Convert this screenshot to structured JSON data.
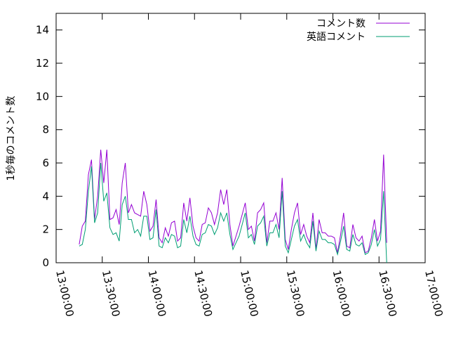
{
  "chart_data": {
    "type": "line",
    "title": "",
    "xlabel": "",
    "ylabel": "1秒毎のコメント数",
    "ylim": [
      0,
      15
    ],
    "yticks": [
      0,
      2,
      4,
      6,
      8,
      10,
      12,
      14
    ],
    "xlim": [
      "13:00:00",
      "17:00:00"
    ],
    "xticks": [
      "13:00:00",
      "13:30:00",
      "14:00:00",
      "14:30:00",
      "15:00:00",
      "15:30:00",
      "16:00:00",
      "16:30:00",
      "17:00:00"
    ],
    "grid": false,
    "legend_position": "top-right",
    "colors": {
      "series1": "#9400d3",
      "series2": "#009e73"
    },
    "series": [
      {
        "name": "コメント数",
        "points": [
          [
            "13:15:00",
            1.1
          ],
          [
            "13:17:00",
            2.2
          ],
          [
            "13:19:00",
            2.5
          ],
          [
            "13:21:00",
            5.3
          ],
          [
            "13:23:00",
            6.2
          ],
          [
            "13:25:00",
            2.6
          ],
          [
            "13:27:00",
            4.0
          ],
          [
            "13:29:00",
            6.8
          ],
          [
            "13:31:00",
            4.8
          ],
          [
            "13:33:00",
            6.8
          ],
          [
            "13:35:00",
            2.6
          ],
          [
            "13:37:00",
            2.7
          ],
          [
            "13:39:00",
            3.2
          ],
          [
            "13:41:00",
            2.3
          ],
          [
            "13:43:00",
            4.8
          ],
          [
            "13:45:00",
            6.0
          ],
          [
            "13:47:00",
            3.0
          ],
          [
            "13:49:00",
            3.5
          ],
          [
            "13:51:00",
            3.0
          ],
          [
            "13:53:00",
            2.9
          ],
          [
            "13:55:00",
            2.8
          ],
          [
            "13:57:00",
            4.3
          ],
          [
            "13:59:00",
            3.5
          ],
          [
            "14:01:00",
            1.9
          ],
          [
            "14:03:00",
            2.2
          ],
          [
            "14:05:00",
            3.8
          ],
          [
            "14:07:00",
            1.5
          ],
          [
            "14:09:00",
            1.2
          ],
          [
            "14:11:00",
            2.1
          ],
          [
            "14:13:00",
            1.6
          ],
          [
            "14:15:00",
            2.4
          ],
          [
            "14:17:00",
            2.5
          ],
          [
            "14:19:00",
            1.3
          ],
          [
            "14:21:00",
            1.5
          ],
          [
            "14:23:00",
            3.6
          ],
          [
            "14:25:00",
            2.5
          ],
          [
            "14:27:00",
            3.9
          ],
          [
            "14:29:00",
            2.2
          ],
          [
            "14:31:00",
            1.5
          ],
          [
            "14:33:00",
            1.3
          ],
          [
            "14:35:00",
            2.3
          ],
          [
            "14:37:00",
            2.4
          ],
          [
            "14:39:00",
            3.3
          ],
          [
            "14:41:00",
            3.0
          ],
          [
            "14:43:00",
            2.3
          ],
          [
            "14:45:00",
            3.0
          ],
          [
            "14:47:00",
            4.4
          ],
          [
            "14:49:00",
            3.5
          ],
          [
            "14:51:00",
            4.4
          ],
          [
            "14:53:00",
            2.3
          ],
          [
            "14:55:00",
            1.0
          ],
          [
            "14:57:00",
            1.6
          ],
          [
            "14:59:00",
            2.2
          ],
          [
            "15:01:00",
            2.9
          ],
          [
            "15:03:00",
            3.6
          ],
          [
            "15:05:00",
            2.0
          ],
          [
            "15:07:00",
            2.2
          ],
          [
            "15:09:00",
            1.3
          ],
          [
            "15:11:00",
            3.0
          ],
          [
            "15:13:00",
            3.2
          ],
          [
            "15:15:00",
            3.6
          ],
          [
            "15:17:00",
            1.2
          ],
          [
            "15:19:00",
            2.5
          ],
          [
            "15:21:00",
            2.5
          ],
          [
            "15:23:00",
            3.0
          ],
          [
            "15:25:00",
            2.0
          ],
          [
            "15:27:00",
            5.1
          ],
          [
            "15:29:00",
            1.4
          ],
          [
            "15:31:00",
            0.8
          ],
          [
            "15:33:00",
            2.0
          ],
          [
            "15:35:00",
            3.0
          ],
          [
            "15:37:00",
            3.6
          ],
          [
            "15:39:00",
            1.7
          ],
          [
            "15:41:00",
            2.3
          ],
          [
            "15:43:00",
            1.6
          ],
          [
            "15:45:00",
            1.2
          ],
          [
            "15:47:00",
            3.0
          ],
          [
            "15:49:00",
            0.8
          ],
          [
            "15:51:00",
            2.6
          ],
          [
            "15:53:00",
            1.8
          ],
          [
            "15:55:00",
            1.8
          ],
          [
            "15:57:00",
            1.6
          ],
          [
            "15:59:00",
            1.6
          ],
          [
            "16:01:00",
            1.5
          ],
          [
            "16:03:00",
            0.6
          ],
          [
            "16:05:00",
            1.7
          ],
          [
            "16:07:00",
            3.0
          ],
          [
            "16:09:00",
            1.0
          ],
          [
            "16:11:00",
            0.9
          ],
          [
            "16:13:00",
            2.3
          ],
          [
            "16:15:00",
            1.5
          ],
          [
            "16:17:00",
            1.3
          ],
          [
            "16:19:00",
            1.6
          ],
          [
            "16:21:00",
            0.6
          ],
          [
            "16:23:00",
            0.7
          ],
          [
            "16:25:00",
            1.5
          ],
          [
            "16:27:00",
            2.6
          ],
          [
            "16:29:00",
            1.3
          ],
          [
            "16:31:00",
            1.9
          ],
          [
            "16:33:00",
            6.5
          ],
          [
            "16:35:00",
            1.2
          ]
        ]
      },
      {
        "name": "英語コメント",
        "points": [
          [
            "13:15:00",
            1.0
          ],
          [
            "13:17:00",
            1.1
          ],
          [
            "13:19:00",
            2.0
          ],
          [
            "13:21:00",
            4.3
          ],
          [
            "13:23:00",
            5.8
          ],
          [
            "13:25:00",
            2.4
          ],
          [
            "13:27:00",
            3.0
          ],
          [
            "13:29:00",
            6.0
          ],
          [
            "13:31:00",
            3.7
          ],
          [
            "13:33:00",
            4.2
          ],
          [
            "13:35:00",
            2.1
          ],
          [
            "13:37:00",
            1.7
          ],
          [
            "13:39:00",
            1.8
          ],
          [
            "13:41:00",
            1.3
          ],
          [
            "13:43:00",
            3.5
          ],
          [
            "13:45:00",
            4.0
          ],
          [
            "13:47:00",
            2.6
          ],
          [
            "13:49:00",
            2.6
          ],
          [
            "13:51:00",
            1.8
          ],
          [
            "13:53:00",
            2.0
          ],
          [
            "13:55:00",
            1.6
          ],
          [
            "13:57:00",
            2.8
          ],
          [
            "13:59:00",
            2.8
          ],
          [
            "14:01:00",
            1.4
          ],
          [
            "14:03:00",
            1.5
          ],
          [
            "14:05:00",
            3.2
          ],
          [
            "14:07:00",
            1.0
          ],
          [
            "14:09:00",
            0.9
          ],
          [
            "14:11:00",
            1.5
          ],
          [
            "14:13:00",
            1.2
          ],
          [
            "14:15:00",
            1.7
          ],
          [
            "14:17:00",
            1.6
          ],
          [
            "14:19:00",
            0.9
          ],
          [
            "14:21:00",
            1.0
          ],
          [
            "14:23:00",
            2.6
          ],
          [
            "14:25:00",
            1.8
          ],
          [
            "14:27:00",
            2.8
          ],
          [
            "14:29:00",
            1.6
          ],
          [
            "14:31:00",
            1.1
          ],
          [
            "14:33:00",
            1.0
          ],
          [
            "14:35:00",
            1.7
          ],
          [
            "14:37:00",
            1.8
          ],
          [
            "14:39:00",
            2.3
          ],
          [
            "14:41:00",
            2.2
          ],
          [
            "14:43:00",
            1.7
          ],
          [
            "14:45:00",
            2.1
          ],
          [
            "14:47:00",
            3.0
          ],
          [
            "14:49:00",
            2.5
          ],
          [
            "14:51:00",
            3.0
          ],
          [
            "14:53:00",
            1.7
          ],
          [
            "14:55:00",
            0.8
          ],
          [
            "14:57:00",
            1.2
          ],
          [
            "14:59:00",
            1.6
          ],
          [
            "15:01:00",
            2.3
          ],
          [
            "15:03:00",
            3.0
          ],
          [
            "15:05:00",
            1.5
          ],
          [
            "15:07:00",
            1.7
          ],
          [
            "15:09:00",
            1.1
          ],
          [
            "15:11:00",
            2.2
          ],
          [
            "15:13:00",
            2.4
          ],
          [
            "15:15:00",
            2.8
          ],
          [
            "15:17:00",
            1.0
          ],
          [
            "15:19:00",
            1.8
          ],
          [
            "15:21:00",
            1.8
          ],
          [
            "15:23:00",
            2.3
          ],
          [
            "15:25:00",
            1.5
          ],
          [
            "15:27:00",
            4.3
          ],
          [
            "15:29:00",
            1.0
          ],
          [
            "15:31:00",
            0.6
          ],
          [
            "15:33:00",
            1.4
          ],
          [
            "15:35:00",
            2.2
          ],
          [
            "15:37:00",
            2.6
          ],
          [
            "15:39:00",
            1.3
          ],
          [
            "15:41:00",
            1.7
          ],
          [
            "15:43:00",
            1.2
          ],
          [
            "15:45:00",
            0.9
          ],
          [
            "15:47:00",
            2.5
          ],
          [
            "15:49:00",
            0.7
          ],
          [
            "15:51:00",
            1.9
          ],
          [
            "15:53:00",
            1.4
          ],
          [
            "15:55:00",
            1.4
          ],
          [
            "15:57:00",
            1.2
          ],
          [
            "15:59:00",
            1.2
          ],
          [
            "16:01:00",
            1.1
          ],
          [
            "16:03:00",
            0.5
          ],
          [
            "16:05:00",
            1.3
          ],
          [
            "16:07:00",
            2.2
          ],
          [
            "16:09:00",
            0.8
          ],
          [
            "16:11:00",
            0.7
          ],
          [
            "16:13:00",
            1.7
          ],
          [
            "16:15:00",
            1.1
          ],
          [
            "16:17:00",
            1.0
          ],
          [
            "16:19:00",
            1.2
          ],
          [
            "16:21:00",
            0.5
          ],
          [
            "16:23:00",
            0.6
          ],
          [
            "16:25:00",
            1.1
          ],
          [
            "16:27:00",
            2.0
          ],
          [
            "16:29:00",
            1.0
          ],
          [
            "16:31:00",
            1.4
          ],
          [
            "16:33:00",
            4.3
          ],
          [
            "16:35:00",
            0.0
          ]
        ]
      }
    ]
  }
}
